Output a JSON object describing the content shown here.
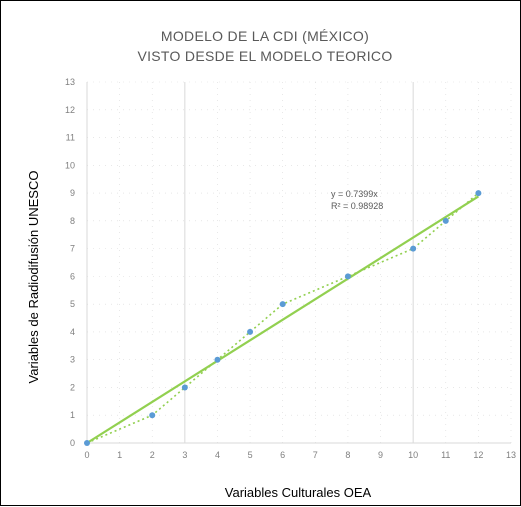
{
  "chart_data": {
    "type": "scatter",
    "title": "MODELO DE LA CDI (MÉXICO)",
    "subtitle": "VISTO DESDE EL MODELO TEORICO",
    "xlabel": "Variables Culturales OEA",
    "ylabel": "Variables de Radiodifusión UNESCO",
    "xlim": [
      0,
      13
    ],
    "ylim": [
      0,
      13
    ],
    "x_ticks": [
      "0",
      "1",
      "2",
      "3",
      "4",
      "5",
      "6",
      "7",
      "8",
      "9",
      "10",
      "11",
      "12",
      "13"
    ],
    "y_ticks": [
      "0",
      "1",
      "2",
      "3",
      "4",
      "5",
      "6",
      "7",
      "8",
      "9",
      "10",
      "11",
      "12",
      "13"
    ],
    "grid": "major vertical lines at 3 and 10; minor dotted gridlines",
    "series": [
      {
        "values": [
          {
            "x": 0,
            "y": 0
          },
          {
            "x": 2,
            "y": 1
          },
          {
            "x": 3,
            "y": 2
          },
          {
            "x": 4,
            "y": 3
          },
          {
            "x": 5,
            "y": 4
          },
          {
            "x": 6,
            "y": 5
          },
          {
            "x": 8,
            "y": 6
          },
          {
            "x": 10,
            "y": 7
          },
          {
            "x": 11,
            "y": 8
          },
          {
            "x": 12,
            "y": 9
          }
        ],
        "color": "#5b9bd5",
        "connector_color": "#92d050",
        "connector_style": "dotted"
      }
    ],
    "trendline": {
      "type": "linear",
      "slope": 0.7399,
      "x_range": [
        0,
        12
      ],
      "color": "#92d050",
      "equation": "y = 0.7399x",
      "r_squared": "R² = 0.98928"
    }
  }
}
